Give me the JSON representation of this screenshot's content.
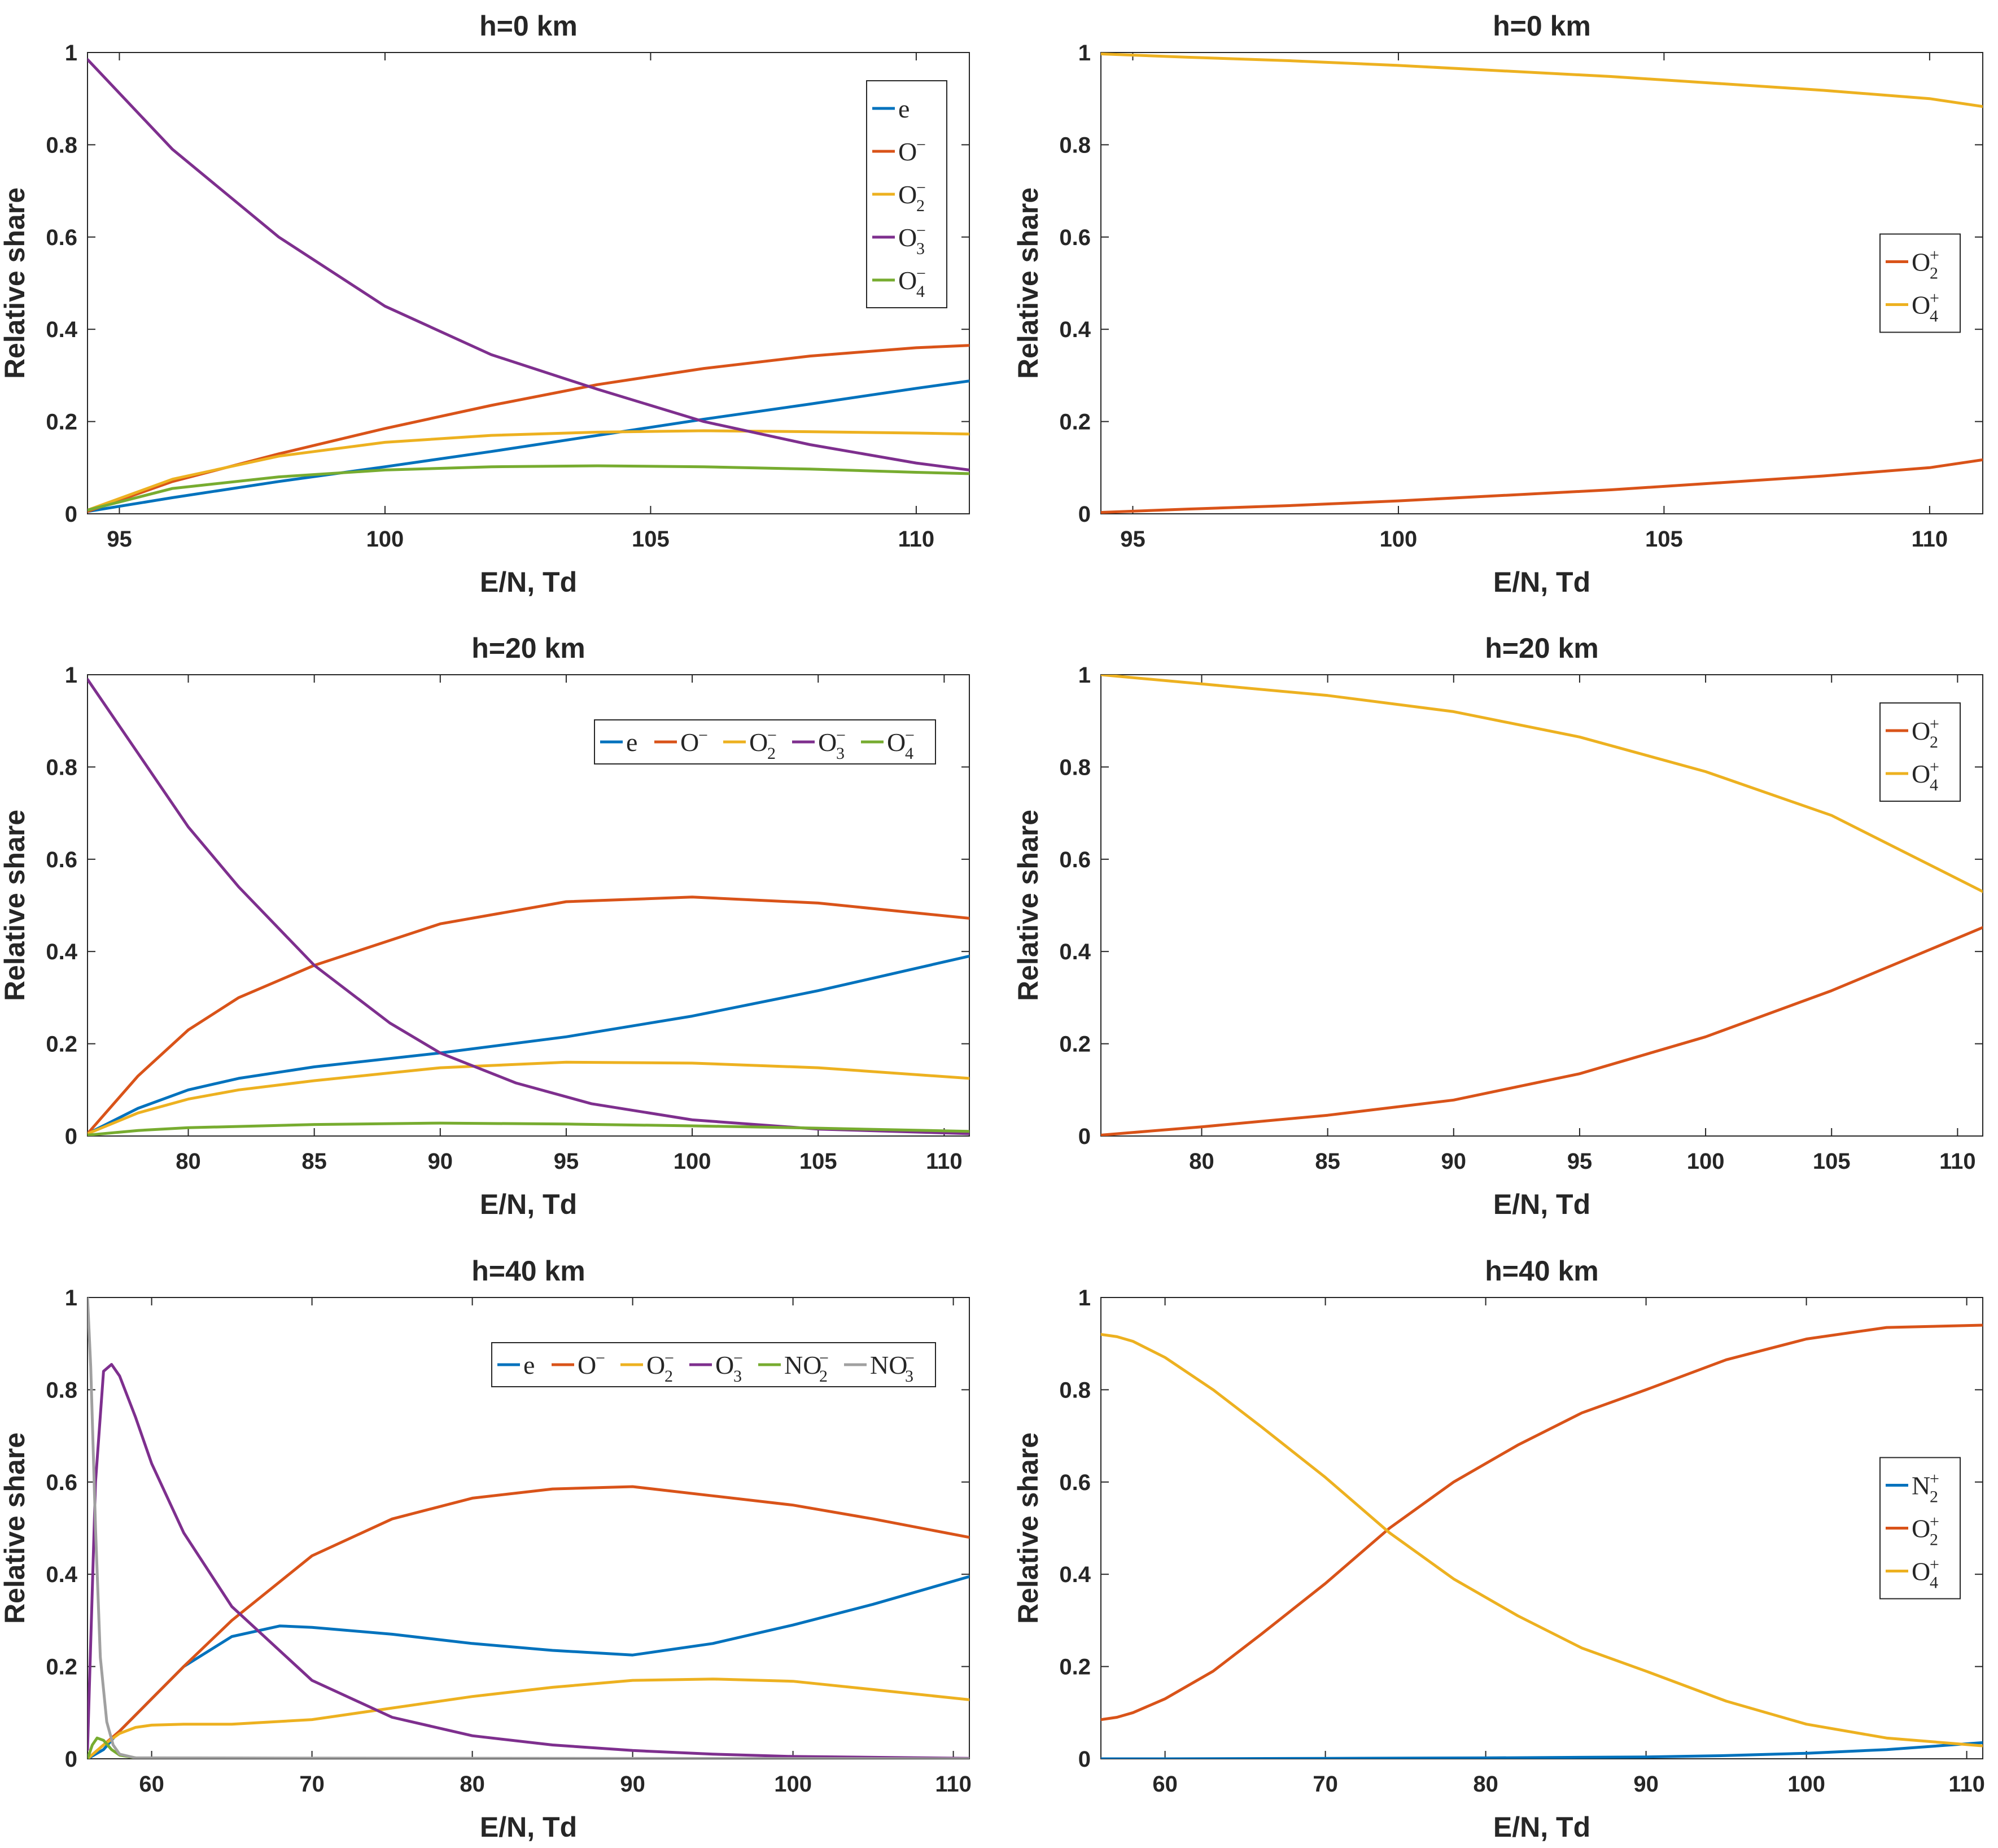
{
  "colors": {
    "blue": "#0072BD",
    "orange": "#D95319",
    "yellow": "#EDB120",
    "purple": "#7E2F8E",
    "green": "#77AC30",
    "gray": "#A0A0A0"
  },
  "chart_data": [
    {
      "type": "line",
      "title": "h=0 km",
      "xlabel": "E/N, Td",
      "ylabel": "Relative share",
      "xlim": [
        94.4,
        111
      ],
      "ylim": [
        0,
        1
      ],
      "xticks": [
        95,
        100,
        105,
        110
      ],
      "yticks": [
        0,
        0.2,
        0.4,
        0.6,
        0.8,
        1
      ],
      "legend_layout": "vertical",
      "legend_position": "top-right",
      "series": [
        {
          "name": "e",
          "base": "e",
          "sub": "",
          "sup": "",
          "color": "blue",
          "x": [
            94.4,
            96,
            98,
            100,
            102,
            104,
            106,
            108,
            110,
            111
          ],
          "y": [
            0.005,
            0.035,
            0.07,
            0.102,
            0.135,
            0.17,
            0.205,
            0.238,
            0.272,
            0.288
          ]
        },
        {
          "name": "O−",
          "base": "O",
          "sub": "",
          "sup": "−",
          "color": "orange",
          "x": [
            94.4,
            96,
            98,
            100,
            102,
            104,
            106,
            108,
            110,
            111
          ],
          "y": [
            0.005,
            0.07,
            0.13,
            0.185,
            0.235,
            0.28,
            0.315,
            0.342,
            0.36,
            0.365
          ]
        },
        {
          "name": "O2−",
          "base": "O",
          "sub": "2",
          "sup": "−",
          "color": "yellow",
          "x": [
            94.4,
            96,
            98,
            100,
            102,
            104,
            106,
            108,
            110,
            111
          ],
          "y": [
            0.008,
            0.075,
            0.125,
            0.155,
            0.17,
            0.177,
            0.18,
            0.178,
            0.175,
            0.173
          ]
        },
        {
          "name": "O3−",
          "base": "O",
          "sub": "3",
          "sup": "−",
          "color": "purple",
          "x": [
            94.4,
            96,
            98,
            100,
            102,
            104,
            106,
            108,
            110,
            111
          ],
          "y": [
            0.985,
            0.79,
            0.6,
            0.45,
            0.345,
            0.27,
            0.2,
            0.15,
            0.11,
            0.095
          ]
        },
        {
          "name": "O4−",
          "base": "O",
          "sub": "4",
          "sup": "−",
          "color": "green",
          "x": [
            94.4,
            96,
            98,
            100,
            102,
            104,
            106,
            108,
            110,
            111
          ],
          "y": [
            0.008,
            0.055,
            0.08,
            0.095,
            0.102,
            0.104,
            0.102,
            0.097,
            0.09,
            0.087
          ]
        }
      ]
    },
    {
      "type": "line",
      "title": "h=0 km",
      "xlabel": "E/N, Td",
      "ylabel": "Relative share",
      "xlim": [
        94.4,
        111
      ],
      "ylim": [
        0,
        1
      ],
      "xticks": [
        95,
        100,
        105,
        110
      ],
      "yticks": [
        0,
        0.2,
        0.4,
        0.6,
        0.8,
        1
      ],
      "legend_layout": "vertical",
      "legend_position": "right",
      "series": [
        {
          "name": "O2+",
          "base": "O",
          "sub": "2",
          "sup": "+",
          "color": "orange",
          "x": [
            94.4,
            96,
            98,
            100,
            102,
            104,
            106,
            108,
            110,
            111
          ],
          "y": [
            0.003,
            0.01,
            0.018,
            0.028,
            0.04,
            0.052,
            0.067,
            0.082,
            0.1,
            0.117
          ]
        },
        {
          "name": "O4+",
          "base": "O",
          "sub": "4",
          "sup": "+",
          "color": "yellow",
          "x": [
            94.4,
            96,
            98,
            100,
            102,
            104,
            106,
            108,
            110,
            111
          ],
          "y": [
            0.997,
            0.99,
            0.982,
            0.972,
            0.96,
            0.948,
            0.933,
            0.918,
            0.9,
            0.883
          ]
        }
      ]
    },
    {
      "type": "line",
      "title": "h=20 km",
      "xlabel": "E/N, Td",
      "ylabel": "Relative share",
      "xlim": [
        76,
        111
      ],
      "ylim": [
        0,
        1
      ],
      "xticks": [
        80,
        85,
        90,
        95,
        100,
        105,
        110
      ],
      "yticks": [
        0,
        0.2,
        0.4,
        0.6,
        0.8,
        1
      ],
      "legend_layout": "horizontal",
      "legend_position": "top-right",
      "series": [
        {
          "name": "e",
          "base": "e",
          "sub": "",
          "sup": "",
          "color": "blue",
          "x": [
            76,
            78,
            80,
            82,
            85,
            90,
            95,
            100,
            105,
            111
          ],
          "y": [
            0.005,
            0.06,
            0.1,
            0.125,
            0.15,
            0.18,
            0.215,
            0.26,
            0.315,
            0.39
          ]
        },
        {
          "name": "O−",
          "base": "O",
          "sub": "",
          "sup": "−",
          "color": "orange",
          "x": [
            76,
            78,
            80,
            82,
            85,
            90,
            95,
            100,
            105,
            111
          ],
          "y": [
            0.005,
            0.13,
            0.23,
            0.3,
            0.37,
            0.46,
            0.508,
            0.518,
            0.505,
            0.472
          ]
        },
        {
          "name": "O2−",
          "base": "O",
          "sub": "2",
          "sup": "−",
          "color": "yellow",
          "x": [
            76,
            78,
            80,
            82,
            85,
            90,
            95,
            100,
            105,
            111
          ],
          "y": [
            0.005,
            0.05,
            0.08,
            0.1,
            0.12,
            0.148,
            0.16,
            0.158,
            0.148,
            0.125
          ]
        },
        {
          "name": "O3−",
          "base": "O",
          "sub": "3",
          "sup": "−",
          "color": "purple",
          "x": [
            76,
            78,
            80,
            82,
            85,
            88,
            90,
            93,
            96,
            100,
            105,
            111
          ],
          "y": [
            0.99,
            0.83,
            0.67,
            0.54,
            0.37,
            0.245,
            0.18,
            0.115,
            0.07,
            0.035,
            0.015,
            0.005
          ]
        },
        {
          "name": "O4−",
          "base": "O",
          "sub": "4",
          "sup": "−",
          "color": "green",
          "x": [
            76,
            78,
            80,
            85,
            90,
            95,
            100,
            105,
            111
          ],
          "y": [
            0.002,
            0.012,
            0.018,
            0.025,
            0.028,
            0.026,
            0.022,
            0.017,
            0.01
          ]
        }
      ]
    },
    {
      "type": "line",
      "title": "h=20 km",
      "xlabel": "E/N, Td",
      "ylabel": "Relative share",
      "xlim": [
        76,
        111
      ],
      "ylim": [
        0,
        1
      ],
      "xticks": [
        80,
        85,
        90,
        95,
        100,
        105,
        110
      ],
      "yticks": [
        0,
        0.2,
        0.4,
        0.6,
        0.8,
        1
      ],
      "legend_layout": "vertical",
      "legend_position": "top-right",
      "series": [
        {
          "name": "O2+",
          "base": "O",
          "sub": "2",
          "sup": "+",
          "color": "orange",
          "x": [
            76,
            80,
            85,
            90,
            95,
            100,
            105,
            111
          ],
          "y": [
            0.002,
            0.02,
            0.045,
            0.078,
            0.135,
            0.215,
            0.315,
            0.452
          ]
        },
        {
          "name": "O4+",
          "base": "O",
          "sub": "4",
          "sup": "+",
          "color": "yellow",
          "x": [
            76,
            80,
            85,
            90,
            95,
            100,
            105,
            111
          ],
          "y": [
            1.0,
            0.98,
            0.955,
            0.92,
            0.865,
            0.79,
            0.695,
            0.53
          ]
        }
      ]
    },
    {
      "type": "line",
      "title": "h=40 km",
      "xlabel": "E/N, Td",
      "ylabel": "Relative share",
      "xlim": [
        56,
        111
      ],
      "ylim": [
        0,
        1
      ],
      "xticks": [
        60,
        70,
        80,
        90,
        100,
        110
      ],
      "yticks": [
        0,
        0.2,
        0.4,
        0.6,
        0.8,
        1
      ],
      "legend_layout": "horizontal",
      "legend_position": "top-right",
      "series": [
        {
          "name": "e",
          "base": "e",
          "sub": "",
          "sup": "",
          "color": "blue",
          "x": [
            56,
            57,
            58,
            60,
            62,
            65,
            68,
            70,
            75,
            80,
            85,
            90,
            95,
            100,
            105,
            111
          ],
          "y": [
            0.0,
            0.02,
            0.06,
            0.13,
            0.2,
            0.265,
            0.288,
            0.285,
            0.27,
            0.25,
            0.235,
            0.225,
            0.25,
            0.29,
            0.335,
            0.395
          ]
        },
        {
          "name": "O−",
          "base": "O",
          "sub": "",
          "sup": "−",
          "color": "orange",
          "x": [
            56,
            58,
            60,
            62,
            65,
            70,
            75,
            80,
            85,
            90,
            95,
            100,
            105,
            111
          ],
          "y": [
            0.0,
            0.06,
            0.13,
            0.2,
            0.3,
            0.44,
            0.52,
            0.565,
            0.585,
            0.59,
            0.57,
            0.55,
            0.52,
            0.48
          ]
        },
        {
          "name": "O2−",
          "base": "O",
          "sub": "2",
          "sup": "−",
          "color": "yellow",
          "x": [
            56,
            57,
            58,
            59,
            60,
            62,
            65,
            70,
            75,
            80,
            85,
            90,
            95,
            100,
            105,
            111
          ],
          "y": [
            0.0,
            0.03,
            0.055,
            0.068,
            0.073,
            0.075,
            0.075,
            0.085,
            0.11,
            0.135,
            0.155,
            0.17,
            0.173,
            0.168,
            0.15,
            0.128
          ]
        },
        {
          "name": "O3−",
          "base": "O",
          "sub": "3",
          "sup": "−",
          "color": "purple",
          "x": [
            56,
            56.5,
            57,
            57.5,
            58,
            59,
            60,
            62,
            65,
            70,
            75,
            80,
            85,
            90,
            95,
            100,
            111
          ],
          "y": [
            0.02,
            0.6,
            0.84,
            0.855,
            0.83,
            0.74,
            0.64,
            0.49,
            0.33,
            0.17,
            0.09,
            0.05,
            0.03,
            0.018,
            0.01,
            0.005,
            0.001
          ]
        },
        {
          "name": "NO2−",
          "base": "NO",
          "sub": "2",
          "sup": "−",
          "color": "green",
          "x": [
            56,
            56.3,
            56.6,
            57,
            57.5,
            58,
            59,
            60,
            111
          ],
          "y": [
            0.0,
            0.03,
            0.045,
            0.04,
            0.02,
            0.008,
            0.002,
            0.0,
            0.0
          ]
        },
        {
          "name": "NO3−",
          "base": "NO",
          "sub": "3",
          "sup": "−",
          "color": "gray",
          "x": [
            56,
            56.2,
            56.5,
            56.8,
            57.2,
            57.6,
            58,
            59,
            111
          ],
          "y": [
            1.0,
            0.85,
            0.5,
            0.22,
            0.08,
            0.03,
            0.01,
            0.002,
            0.0
          ]
        }
      ]
    },
    {
      "type": "line",
      "title": "h=40 km",
      "xlabel": "E/N, Td",
      "ylabel": "Relative share",
      "xlim": [
        56,
        111
      ],
      "ylim": [
        0,
        1
      ],
      "xticks": [
        60,
        70,
        80,
        90,
        100,
        110
      ],
      "yticks": [
        0,
        0.2,
        0.4,
        0.6,
        0.8,
        1
      ],
      "legend_layout": "vertical",
      "legend_position": "right",
      "series": [
        {
          "name": "N2+",
          "base": "N",
          "sub": "2",
          "sup": "+",
          "color": "blue",
          "x": [
            56,
            60,
            70,
            80,
            90,
            95,
            100,
            105,
            111
          ],
          "y": [
            0.0,
            0.0,
            0.001,
            0.002,
            0.004,
            0.007,
            0.012,
            0.02,
            0.035
          ]
        },
        {
          "name": "O2+",
          "base": "O",
          "sub": "2",
          "sup": "+",
          "color": "orange",
          "x": [
            56,
            57,
            58,
            60,
            63,
            66,
            70,
            74,
            78,
            82,
            86,
            90,
            95,
            100,
            105,
            111
          ],
          "y": [
            0.085,
            0.09,
            0.1,
            0.13,
            0.19,
            0.27,
            0.38,
            0.5,
            0.6,
            0.68,
            0.75,
            0.8,
            0.865,
            0.91,
            0.935,
            0.94
          ]
        },
        {
          "name": "O4+",
          "base": "O",
          "sub": "4",
          "sup": "+",
          "color": "yellow",
          "x": [
            56,
            57,
            58,
            60,
            63,
            66,
            70,
            74,
            78,
            82,
            86,
            90,
            95,
            100,
            105,
            111
          ],
          "y": [
            0.92,
            0.915,
            0.905,
            0.87,
            0.8,
            0.72,
            0.61,
            0.49,
            0.39,
            0.31,
            0.24,
            0.19,
            0.125,
            0.075,
            0.045,
            0.028
          ]
        }
      ]
    }
  ]
}
